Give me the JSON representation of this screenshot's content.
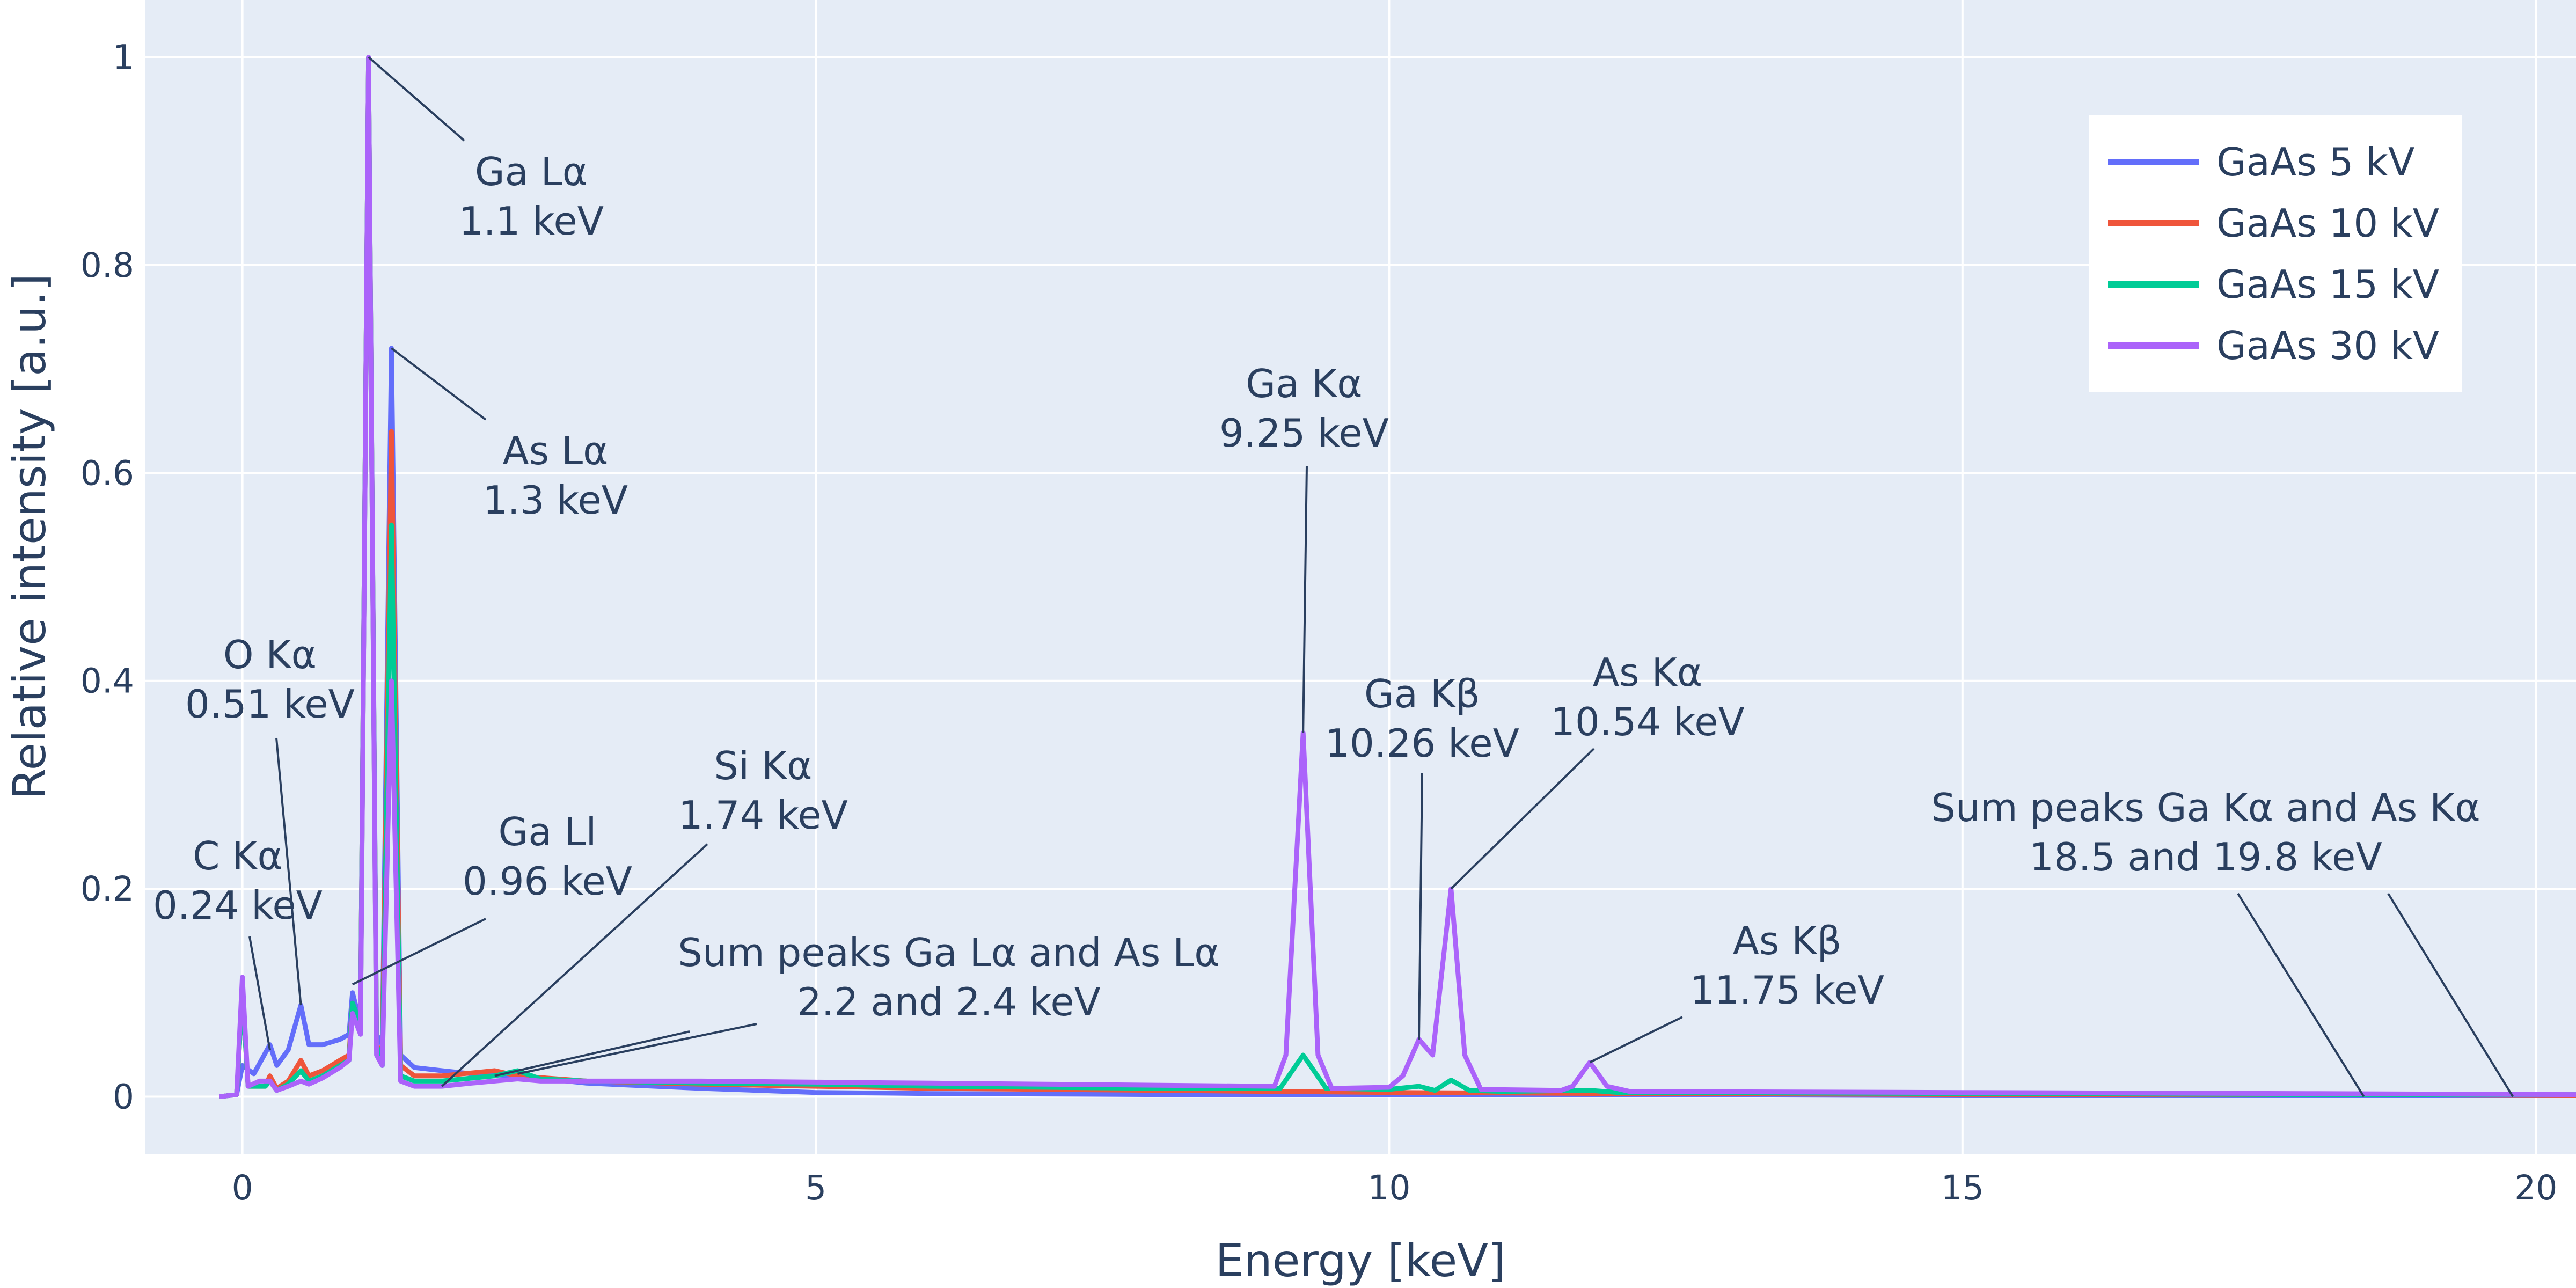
{
  "colors": {
    "background": "#ffffff",
    "plot_background": "#e5ecf6",
    "grid": "#ffffff",
    "text": "#2a3f5f",
    "legend_background": "#ffffff"
  },
  "chart_data": {
    "type": "line",
    "xlabel": "Energy [keV]",
    "ylabel": "Relative intensity [a.u.]",
    "xlim": [
      -0.85,
      20.35
    ],
    "ylim": [
      -0.055,
      1.055
    ],
    "x_ticks": [
      0,
      5,
      10,
      15,
      20
    ],
    "y_ticks": [
      0,
      0.2,
      0.4,
      0.6,
      0.8,
      1
    ],
    "x_tick_labels": [
      "0",
      "5",
      "10",
      "15",
      "20"
    ],
    "y_tick_labels": [
      "0",
      "0.2",
      "0.4",
      "0.6",
      "0.8",
      "1"
    ],
    "grid": true,
    "legend_position": "top-right",
    "series": [
      {
        "name": "GaAs 5 kV",
        "color": "#636efa",
        "points": [
          [
            -0.2,
            0
          ],
          [
            -0.05,
            0.002
          ],
          [
            0.0,
            0.03
          ],
          [
            0.1,
            0.022
          ],
          [
            0.24,
            0.05
          ],
          [
            0.3,
            0.03
          ],
          [
            0.4,
            0.045
          ],
          [
            0.51,
            0.088
          ],
          [
            0.58,
            0.05
          ],
          [
            0.7,
            0.05
          ],
          [
            0.85,
            0.055
          ],
          [
            0.93,
            0.06
          ],
          [
            0.96,
            0.1
          ],
          [
            1.03,
            0.07
          ],
          [
            1.1,
            1.0
          ],
          [
            1.17,
            0.06
          ],
          [
            1.22,
            0.05
          ],
          [
            1.3,
            0.72
          ],
          [
            1.38,
            0.04
          ],
          [
            1.5,
            0.028
          ],
          [
            1.74,
            0.025
          ],
          [
            2.0,
            0.022
          ],
          [
            2.4,
            0.02
          ],
          [
            3.0,
            0.013
          ],
          [
            4.0,
            0.008
          ],
          [
            5.0,
            0.004
          ],
          [
            6.0,
            0.003
          ],
          [
            8.0,
            0.002
          ],
          [
            10.0,
            0.002
          ],
          [
            12.0,
            0.002
          ],
          [
            15.0,
            0.001
          ],
          [
            18.0,
            0.001
          ],
          [
            20.35,
            0.001
          ]
        ]
      },
      {
        "name": "GaAs 10 kV",
        "color": "#EF553B",
        "points": [
          [
            -0.2,
            0
          ],
          [
            -0.05,
            0.002
          ],
          [
            0.0,
            0.1
          ],
          [
            0.05,
            0.01
          ],
          [
            0.2,
            0.01
          ],
          [
            0.24,
            0.02
          ],
          [
            0.3,
            0.008
          ],
          [
            0.4,
            0.015
          ],
          [
            0.51,
            0.035
          ],
          [
            0.58,
            0.02
          ],
          [
            0.7,
            0.025
          ],
          [
            0.85,
            0.035
          ],
          [
            0.93,
            0.04
          ],
          [
            0.96,
            0.09
          ],
          [
            1.03,
            0.07
          ],
          [
            1.1,
            1.0
          ],
          [
            1.17,
            0.05
          ],
          [
            1.22,
            0.04
          ],
          [
            1.3,
            0.64
          ],
          [
            1.38,
            0.03
          ],
          [
            1.5,
            0.02
          ],
          [
            1.74,
            0.02
          ],
          [
            2.2,
            0.025
          ],
          [
            2.4,
            0.02
          ],
          [
            3.0,
            0.015
          ],
          [
            4.0,
            0.012
          ],
          [
            5.0,
            0.01
          ],
          [
            6.0,
            0.008
          ],
          [
            8.0,
            0.006
          ],
          [
            10.0,
            0.004
          ],
          [
            12.0,
            0.003
          ],
          [
            15.0,
            0.002
          ],
          [
            18.0,
            0.002
          ],
          [
            20.35,
            0.001
          ]
        ]
      },
      {
        "name": "GaAs 15 kV",
        "color": "#00cc96",
        "points": [
          [
            -0.2,
            0
          ],
          [
            -0.05,
            0.002
          ],
          [
            0.0,
            0.1
          ],
          [
            0.05,
            0.01
          ],
          [
            0.2,
            0.01
          ],
          [
            0.24,
            0.015
          ],
          [
            0.3,
            0.006
          ],
          [
            0.4,
            0.012
          ],
          [
            0.51,
            0.025
          ],
          [
            0.58,
            0.015
          ],
          [
            0.7,
            0.02
          ],
          [
            0.85,
            0.03
          ],
          [
            0.93,
            0.035
          ],
          [
            0.96,
            0.09
          ],
          [
            1.03,
            0.07
          ],
          [
            1.1,
            1.0
          ],
          [
            1.17,
            0.05
          ],
          [
            1.22,
            0.03
          ],
          [
            1.3,
            0.55
          ],
          [
            1.38,
            0.02
          ],
          [
            1.5,
            0.015
          ],
          [
            1.74,
            0.015
          ],
          [
            2.2,
            0.02
          ],
          [
            2.4,
            0.025
          ],
          [
            2.6,
            0.017
          ],
          [
            3.0,
            0.015
          ],
          [
            4.0,
            0.013
          ],
          [
            5.0,
            0.012
          ],
          [
            6.0,
            0.01
          ],
          [
            8.0,
            0.008
          ],
          [
            9.05,
            0.008
          ],
          [
            9.25,
            0.04
          ],
          [
            9.45,
            0.008
          ],
          [
            10.0,
            0.007
          ],
          [
            10.26,
            0.01
          ],
          [
            10.4,
            0.006
          ],
          [
            10.54,
            0.016
          ],
          [
            10.7,
            0.006
          ],
          [
            11.0,
            0.005
          ],
          [
            11.75,
            0.006
          ],
          [
            12.0,
            0.004
          ],
          [
            15.0,
            0.003
          ],
          [
            18.0,
            0.002
          ],
          [
            20.35,
            0.002
          ]
        ]
      },
      {
        "name": "GaAs 30 kV",
        "color": "#ab63fa",
        "points": [
          [
            -0.2,
            0
          ],
          [
            -0.05,
            0.002
          ],
          [
            0.0,
            0.115
          ],
          [
            0.05,
            0.01
          ],
          [
            0.15,
            0.015
          ],
          [
            0.24,
            0.015
          ],
          [
            0.3,
            0.006
          ],
          [
            0.4,
            0.01
          ],
          [
            0.51,
            0.015
          ],
          [
            0.58,
            0.012
          ],
          [
            0.7,
            0.018
          ],
          [
            0.85,
            0.028
          ],
          [
            0.93,
            0.035
          ],
          [
            0.96,
            0.08
          ],
          [
            1.03,
            0.06
          ],
          [
            1.1,
            1.0
          ],
          [
            1.17,
            0.04
          ],
          [
            1.22,
            0.03
          ],
          [
            1.3,
            0.4
          ],
          [
            1.38,
            0.015
          ],
          [
            1.5,
            0.01
          ],
          [
            1.74,
            0.01
          ],
          [
            2.0,
            0.013
          ],
          [
            2.2,
            0.015
          ],
          [
            2.4,
            0.017
          ],
          [
            2.6,
            0.015
          ],
          [
            3.0,
            0.015
          ],
          [
            4.0,
            0.015
          ],
          [
            5.0,
            0.014
          ],
          [
            6.0,
            0.013
          ],
          [
            7.0,
            0.012
          ],
          [
            8.0,
            0.011
          ],
          [
            9.0,
            0.01
          ],
          [
            9.1,
            0.04
          ],
          [
            9.25,
            0.35
          ],
          [
            9.38,
            0.04
          ],
          [
            9.5,
            0.008
          ],
          [
            10.0,
            0.009
          ],
          [
            10.12,
            0.02
          ],
          [
            10.26,
            0.055
          ],
          [
            10.38,
            0.04
          ],
          [
            10.54,
            0.2
          ],
          [
            10.66,
            0.04
          ],
          [
            10.8,
            0.007
          ],
          [
            11.5,
            0.006
          ],
          [
            11.6,
            0.01
          ],
          [
            11.75,
            0.033
          ],
          [
            11.9,
            0.01
          ],
          [
            12.1,
            0.005
          ],
          [
            15.0,
            0.004
          ],
          [
            18.0,
            0.003
          ],
          [
            20.35,
            0.002
          ]
        ]
      }
    ],
    "annotations": [
      {
        "lines": [
          "Ga Lα",
          "1.1 keV"
        ],
        "x": 1.1,
        "y": 1.0
      },
      {
        "lines": [
          "As Lα",
          "1.3 keV"
        ],
        "x": 1.3,
        "y": 0.72
      },
      {
        "lines": [
          "O Kα",
          "0.51 keV"
        ],
        "x": 0.51,
        "y": 0.088
      },
      {
        "lines": [
          "C Kα",
          "0.24 keV"
        ],
        "x": 0.24,
        "y": 0.045
      },
      {
        "lines": [
          "Ga Ll",
          "0.96 keV"
        ],
        "x": 0.96,
        "y": 0.108
      },
      {
        "lines": [
          "Si Kα",
          "1.74 keV"
        ],
        "x": 1.74,
        "y": 0.01
      },
      {
        "lines": [
          "Sum peaks Ga Lα and As Lα",
          "2.2 and 2.4 keV"
        ],
        "x": 2.3,
        "y": 0.02
      },
      {
        "lines": [
          "Ga Kα",
          "9.25 keV"
        ],
        "x": 9.25,
        "y": 0.35
      },
      {
        "lines": [
          "Ga Kβ",
          "10.26 keV"
        ],
        "x": 10.26,
        "y": 0.055
      },
      {
        "lines": [
          "As Kα",
          "10.54 keV"
        ],
        "x": 10.54,
        "y": 0.2
      },
      {
        "lines": [
          "As Kβ",
          "11.75 keV"
        ],
        "x": 11.75,
        "y": 0.033
      },
      {
        "lines": [
          "Sum peaks Ga Kα and As Kα",
          "18.5 and 19.8 keV"
        ],
        "x": 19.15,
        "y": 0.0
      }
    ]
  }
}
